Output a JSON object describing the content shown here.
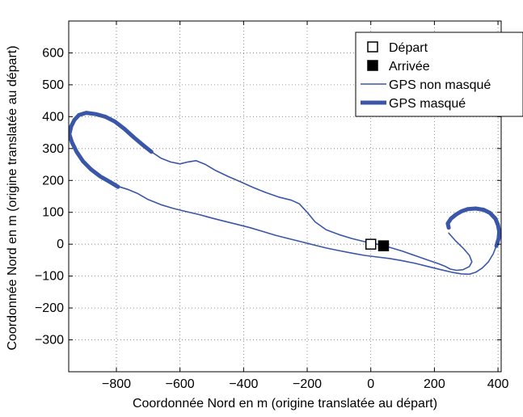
{
  "chart_data": {
    "type": "line",
    "title": "",
    "xlabel": "Coordonnée Nord en m (origine translatée au départ)",
    "ylabel": "Coordonnée Nord en m (origine translatée au départ)",
    "xlim": [
      -950,
      410
    ],
    "ylim": [
      -400,
      700
    ],
    "xticks": [
      -800,
      -600,
      -400,
      -200,
      0,
      200,
      400
    ],
    "xtick_labels": [
      "−800",
      "−600",
      "−400",
      "−200",
      "0",
      "200",
      "400"
    ],
    "yticks": [
      -300,
      -200,
      -100,
      0,
      100,
      200,
      300,
      400,
      500,
      600
    ],
    "ytick_labels": [
      "−300",
      "−200",
      "−100",
      "0",
      "100",
      "200",
      "300",
      "400",
      "500",
      "600"
    ],
    "grid": true,
    "grid_style": "dotted",
    "legend_position": "top-right",
    "colors": {
      "line": "#3a56a8",
      "marker": "#000000",
      "frame": "#000000",
      "grid": "#777777"
    },
    "series": [
      {
        "name": "GPS non masqué",
        "style": "thin",
        "segments": [
          [
            [
              -690,
              290
            ],
            [
              -660,
              270
            ],
            [
              -630,
              258
            ],
            [
              -600,
              252
            ],
            [
              -575,
              258
            ],
            [
              -550,
              262
            ],
            [
              -520,
              250
            ],
            [
              -490,
              232
            ],
            [
              -450,
              213
            ],
            [
              -410,
              196
            ],
            [
              -370,
              178
            ],
            [
              -330,
              162
            ],
            [
              -290,
              148
            ],
            [
              -250,
              138
            ],
            [
              -225,
              127
            ],
            [
              -200,
              100
            ],
            [
              -175,
              70
            ],
            [
              -140,
              45
            ],
            [
              -100,
              30
            ],
            [
              -60,
              18
            ],
            [
              -20,
              8
            ],
            [
              20,
              0
            ],
            [
              60,
              -10
            ],
            [
              100,
              -22
            ],
            [
              140,
              -36
            ],
            [
              180,
              -50
            ],
            [
              210,
              -60
            ],
            [
              235,
              -70
            ],
            [
              250,
              -78
            ],
            [
              270,
              -82
            ],
            [
              290,
              -80
            ],
            [
              310,
              -70
            ],
            [
              318,
              -55
            ],
            [
              310,
              -35
            ],
            [
              290,
              -12
            ],
            [
              265,
              12
            ],
            [
              245,
              35
            ]
          ],
          [
            [
              -790,
              180
            ],
            [
              -765,
              172
            ],
            [
              -735,
              160
            ],
            [
              -700,
              140
            ],
            [
              -660,
              124
            ],
            [
              -620,
              112
            ],
            [
              -580,
              102
            ],
            [
              -540,
              93
            ],
            [
              -500,
              82
            ],
            [
              -460,
              72
            ],
            [
              -420,
              62
            ],
            [
              -380,
              52
            ],
            [
              -340,
              40
            ],
            [
              -300,
              28
            ],
            [
              -260,
              18
            ],
            [
              -220,
              8
            ],
            [
              -180,
              -2
            ],
            [
              -140,
              -12
            ],
            [
              -100,
              -20
            ],
            [
              -60,
              -28
            ],
            [
              -20,
              -35
            ],
            [
              20,
              -40
            ],
            [
              60,
              -45
            ],
            [
              100,
              -52
            ],
            [
              140,
              -60
            ],
            [
              180,
              -70
            ],
            [
              220,
              -80
            ],
            [
              255,
              -88
            ],
            [
              285,
              -93
            ],
            [
              310,
              -94
            ],
            [
              330,
              -88
            ],
            [
              350,
              -75
            ],
            [
              370,
              -55
            ],
            [
              385,
              -30
            ],
            [
              395,
              -5
            ]
          ]
        ]
      },
      {
        "name": "GPS masqué",
        "style": "thick",
        "segments": [
          [
            [
              -690,
              290
            ],
            [
              -715,
              310
            ],
            [
              -745,
              335
            ],
            [
              -775,
              362
            ],
            [
              -805,
              385
            ],
            [
              -835,
              400
            ],
            [
              -865,
              408
            ],
            [
              -895,
              412
            ],
            [
              -918,
              405
            ],
            [
              -932,
              390
            ],
            [
              -942,
              370
            ],
            [
              -948,
              345
            ],
            [
              -940,
              320
            ],
            [
              -925,
              290
            ],
            [
              -905,
              260
            ],
            [
              -880,
              235
            ],
            [
              -850,
              212
            ],
            [
              -820,
              195
            ],
            [
              -795,
              180
            ]
          ],
          [
            [
              395,
              -5
            ],
            [
              402,
              18
            ],
            [
              404,
              40
            ],
            [
              400,
              60
            ],
            [
              392,
              80
            ],
            [
              375,
              98
            ],
            [
              355,
              108
            ],
            [
              330,
              112
            ],
            [
              305,
              110
            ],
            [
              285,
              103
            ],
            [
              268,
              93
            ],
            [
              252,
              80
            ],
            [
              242,
              65
            ],
            [
              245,
              52
            ]
          ]
        ]
      }
    ],
    "markers": [
      {
        "name": "Départ",
        "x": 0,
        "y": 0,
        "shape": "square-open"
      },
      {
        "name": "Arrivée",
        "x": 40,
        "y": -5,
        "shape": "square-filled"
      }
    ],
    "legend": [
      {
        "label": "Départ",
        "shape": "square-open"
      },
      {
        "label": "Arrivée",
        "shape": "square-filled"
      },
      {
        "label": "GPS non masqué",
        "shape": "line-thin"
      },
      {
        "label": "GPS masqué",
        "shape": "line-thick"
      }
    ]
  }
}
